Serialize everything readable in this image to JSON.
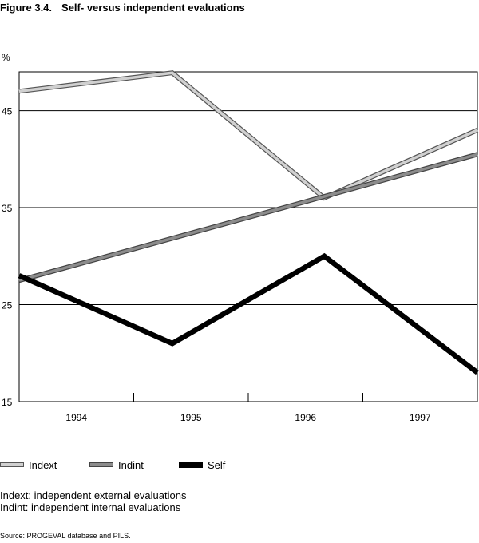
{
  "figure": {
    "number": "Figure 3.4.",
    "title": "Self- versus independent evaluations"
  },
  "notes": [
    "Indext: independent external evaluations",
    "Indint: independent internal evaluations"
  ],
  "source": "Source: PROGEVAL database and PILS.",
  "colors": {
    "Indext": "#d0d0d0",
    "Indint": "#8c8c8c",
    "Self": "#000000"
  },
  "chart_data": {
    "type": "line",
    "title": "Self- versus independent evaluations",
    "ylabel": "%",
    "xlabel": "",
    "ylim": [
      15,
      49
    ],
    "xlim": [
      1993.45,
      1997.55
    ],
    "yticks": [
      15,
      25,
      35,
      45
    ],
    "categories": [
      "1994",
      "1995",
      "1996",
      "1997"
    ],
    "grid": "horizontal",
    "legend_position": "bottom",
    "series": [
      {
        "name": "Indext",
        "x": [
          1993.45,
          1994.82,
          1996.18,
          1997.55
        ],
        "values": [
          47.0,
          48.9,
          36.0,
          43.0
        ]
      },
      {
        "name": "Indint",
        "x": [
          1993.45,
          1997.55
        ],
        "values": [
          27.5,
          40.5
        ]
      },
      {
        "name": "Self",
        "x": [
          1993.45,
          1994.82,
          1996.18,
          1997.55
        ],
        "values": [
          28.0,
          21.0,
          30.0,
          18.0
        ]
      }
    ]
  }
}
